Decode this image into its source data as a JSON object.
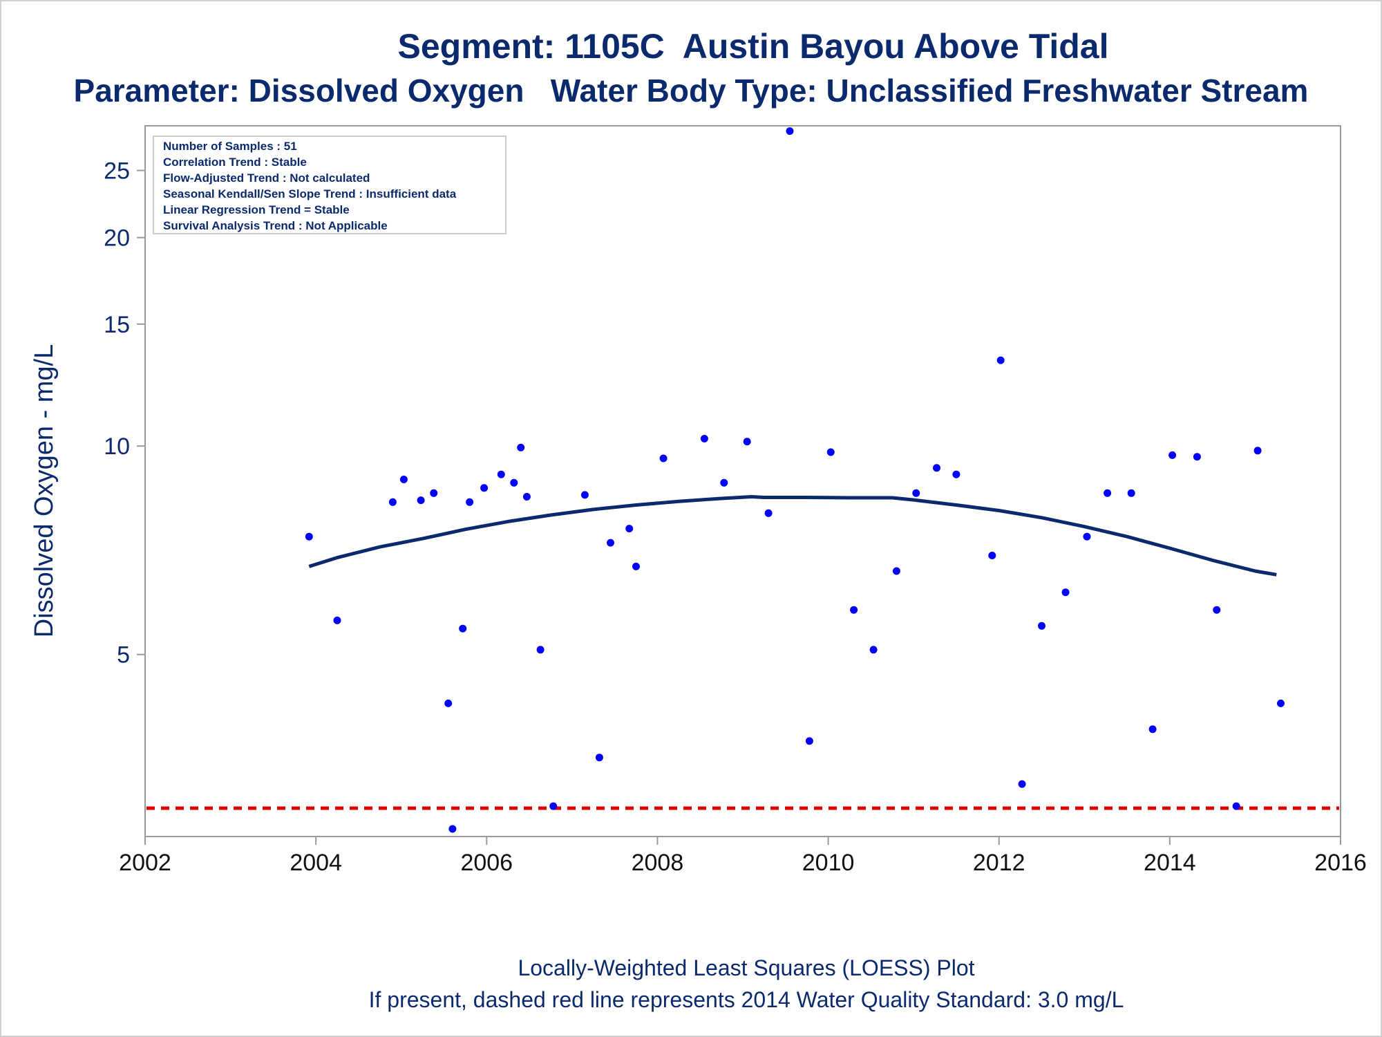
{
  "title": "Segment: 1105C  Austin Bayou Above Tidal",
  "subtitle": "Parameter: Dissolved Oxygen   Water Body Type: Unclassified Freshwater Stream",
  "footer": {
    "line1": "Locally-Weighted Least Squares (LOESS) Plot",
    "line2": "If present, dashed red line represents 2014 Water Quality Standard: 3.0 mg/L"
  },
  "inset_box": {
    "lines": [
      "Number of Samples : 51",
      "Correlation Trend : Stable",
      "Flow-Adjusted Trend : Not calculated",
      "Seasonal Kendall/Sen Slope Trend : Insufficient data",
      "Linear Regression Trend = Stable",
      "Survival Analysis Trend : Not Applicable"
    ]
  },
  "colors": {
    "text": "#0b2a6e",
    "points": "#0000ff",
    "loess": "#0b2a6e",
    "standard_line": "#dd0000",
    "axis": "#999999"
  },
  "chart_data": {
    "type": "scatter",
    "ylabel": "Dissolved Oxygen - mg/L",
    "xlabel": "",
    "x_ticks": [
      "2002",
      "2004",
      "2006",
      "2008",
      "2010",
      "2012",
      "2014",
      "2016"
    ],
    "x_tick_values": [
      2002,
      2004,
      2006,
      2008,
      2010,
      2012,
      2014,
      2016
    ],
    "y_ticks": [
      "5",
      "10",
      "15",
      "20",
      "25"
    ],
    "y_tick_values": [
      5,
      10,
      15,
      20,
      25
    ],
    "y_scale": "log",
    "xlim": [
      2002,
      2016
    ],
    "ylim": [
      2.73,
      29.0
    ],
    "grid": false,
    "series": [
      {
        "name": "",
        "kind": "points",
        "points": [
          [
            2003.92,
            7.4
          ],
          [
            2004.25,
            5.6
          ],
          [
            2004.9,
            8.3
          ],
          [
            2005.03,
            8.95
          ],
          [
            2005.23,
            8.35
          ],
          [
            2005.38,
            8.55
          ],
          [
            2005.55,
            4.25
          ],
          [
            2005.6,
            2.8
          ],
          [
            2005.72,
            5.45
          ],
          [
            2005.8,
            8.3
          ],
          [
            2005.97,
            8.7
          ],
          [
            2006.17,
            9.1
          ],
          [
            2006.32,
            8.85
          ],
          [
            2006.4,
            9.95
          ],
          [
            2006.47,
            8.45
          ],
          [
            2006.63,
            5.08
          ],
          [
            2006.78,
            3.02
          ],
          [
            2007.15,
            8.5
          ],
          [
            2007.32,
            3.55
          ],
          [
            2007.45,
            7.25
          ],
          [
            2007.67,
            7.6
          ],
          [
            2007.75,
            6.7
          ],
          [
            2008.07,
            9.6
          ],
          [
            2008.55,
            10.25
          ],
          [
            2008.78,
            8.85
          ],
          [
            2009.05,
            10.15
          ],
          [
            2009.3,
            8.0
          ],
          [
            2009.55,
            28.5
          ],
          [
            2009.78,
            3.75
          ],
          [
            2010.03,
            9.8
          ],
          [
            2010.3,
            5.8
          ],
          [
            2010.53,
            5.08
          ],
          [
            2010.8,
            6.6
          ],
          [
            2011.03,
            8.55
          ],
          [
            2011.27,
            9.3
          ],
          [
            2011.5,
            9.1
          ],
          [
            2011.92,
            6.95
          ],
          [
            2012.02,
            13.3
          ],
          [
            2012.27,
            3.25
          ],
          [
            2012.5,
            5.5
          ],
          [
            2012.78,
            6.15
          ],
          [
            2013.03,
            7.4
          ],
          [
            2013.27,
            8.55
          ],
          [
            2013.55,
            8.55
          ],
          [
            2013.8,
            3.9
          ],
          [
            2014.03,
            9.7
          ],
          [
            2014.32,
            9.65
          ],
          [
            2014.55,
            5.8
          ],
          [
            2014.78,
            3.02
          ],
          [
            2015.03,
            9.85
          ],
          [
            2015.3,
            4.25
          ]
        ]
      },
      {
        "name": "",
        "kind": "loess",
        "points": [
          [
            2003.92,
            6.7
          ],
          [
            2004.25,
            6.9
          ],
          [
            2004.75,
            7.15
          ],
          [
            2005.25,
            7.35
          ],
          [
            2005.75,
            7.58
          ],
          [
            2006.25,
            7.78
          ],
          [
            2006.75,
            7.95
          ],
          [
            2007.25,
            8.1
          ],
          [
            2007.75,
            8.22
          ],
          [
            2008.25,
            8.32
          ],
          [
            2008.75,
            8.4
          ],
          [
            2009.1,
            8.45
          ],
          [
            2009.25,
            8.43
          ],
          [
            2009.75,
            8.43
          ],
          [
            2010.25,
            8.42
          ],
          [
            2010.75,
            8.42
          ],
          [
            2011.0,
            8.36
          ],
          [
            2011.5,
            8.22
          ],
          [
            2012.0,
            8.07
          ],
          [
            2012.5,
            7.88
          ],
          [
            2013.0,
            7.65
          ],
          [
            2013.5,
            7.4
          ],
          [
            2014.0,
            7.12
          ],
          [
            2014.5,
            6.84
          ],
          [
            2015.0,
            6.6
          ],
          [
            2015.25,
            6.52
          ]
        ]
      }
    ],
    "reference_lines": [
      {
        "y": 3.0,
        "style": "dashed"
      }
    ]
  }
}
